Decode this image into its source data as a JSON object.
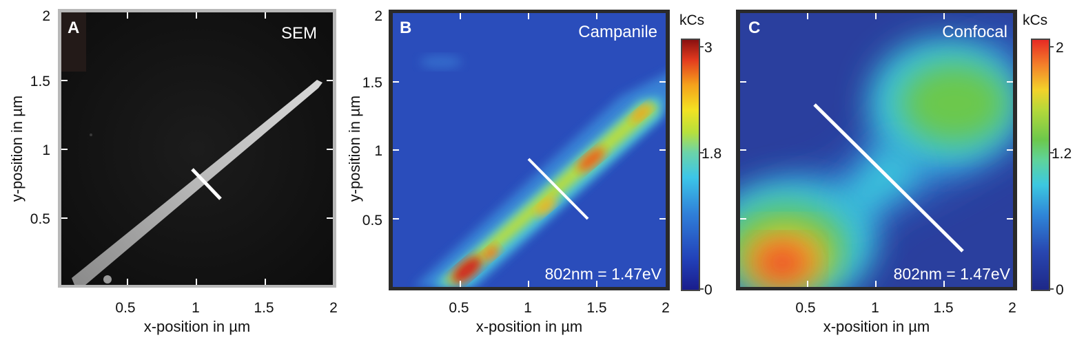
{
  "chart_data": [
    {
      "type": "heatmap",
      "panel": "A",
      "title": "SEM",
      "xlabel": "x-position in µm",
      "ylabel": "y-position in µm",
      "xlim": [
        0,
        2
      ],
      "ylim": [
        0,
        2
      ],
      "xticks": [
        "0.5",
        "1",
        "1.5",
        "2"
      ],
      "yticks": [
        "0.5",
        "1",
        "1.5",
        "2"
      ],
      "colorbar": null,
      "line_cut": {
        "from": [
          1.0,
          0.85
        ],
        "to": [
          1.17,
          0.64
        ]
      }
    },
    {
      "type": "heatmap",
      "panel": "B",
      "title": "Campanile",
      "annotation": "802nm = 1.47eV",
      "xlabel": "x-position in µm",
      "ylabel": "y-position in µm",
      "xlim": [
        0,
        2
      ],
      "ylim": [
        0,
        2
      ],
      "xticks": [
        "0.5",
        "1",
        "1.5",
        "2"
      ],
      "yticks": [
        "0.5",
        "1",
        "1.5",
        "2"
      ],
      "colorbar": {
        "unit": "kCs",
        "min": 0,
        "max": 3.1,
        "ticks": [
          "0",
          "1.8",
          "3"
        ]
      },
      "line_cut": {
        "from": [
          1.0,
          0.93
        ],
        "to": [
          1.43,
          0.5
        ]
      }
    },
    {
      "type": "heatmap",
      "panel": "C",
      "title": "Confocal",
      "annotation": "802nm = 1.47eV",
      "xlabel": "x-position in µm",
      "ylabel": "",
      "xlim": [
        0,
        2
      ],
      "ylim": [
        0,
        2
      ],
      "xticks": [
        "0.5",
        "1",
        "1.5",
        "2"
      ],
      "yticks": [],
      "colorbar": {
        "unit": "kCs",
        "min": 0,
        "max": 2.1,
        "ticks": [
          "0",
          "1.2",
          "2"
        ]
      },
      "line_cut": {
        "from": [
          0.54,
          1.32
        ],
        "to": [
          1.62,
          0.27
        ]
      }
    }
  ]
}
